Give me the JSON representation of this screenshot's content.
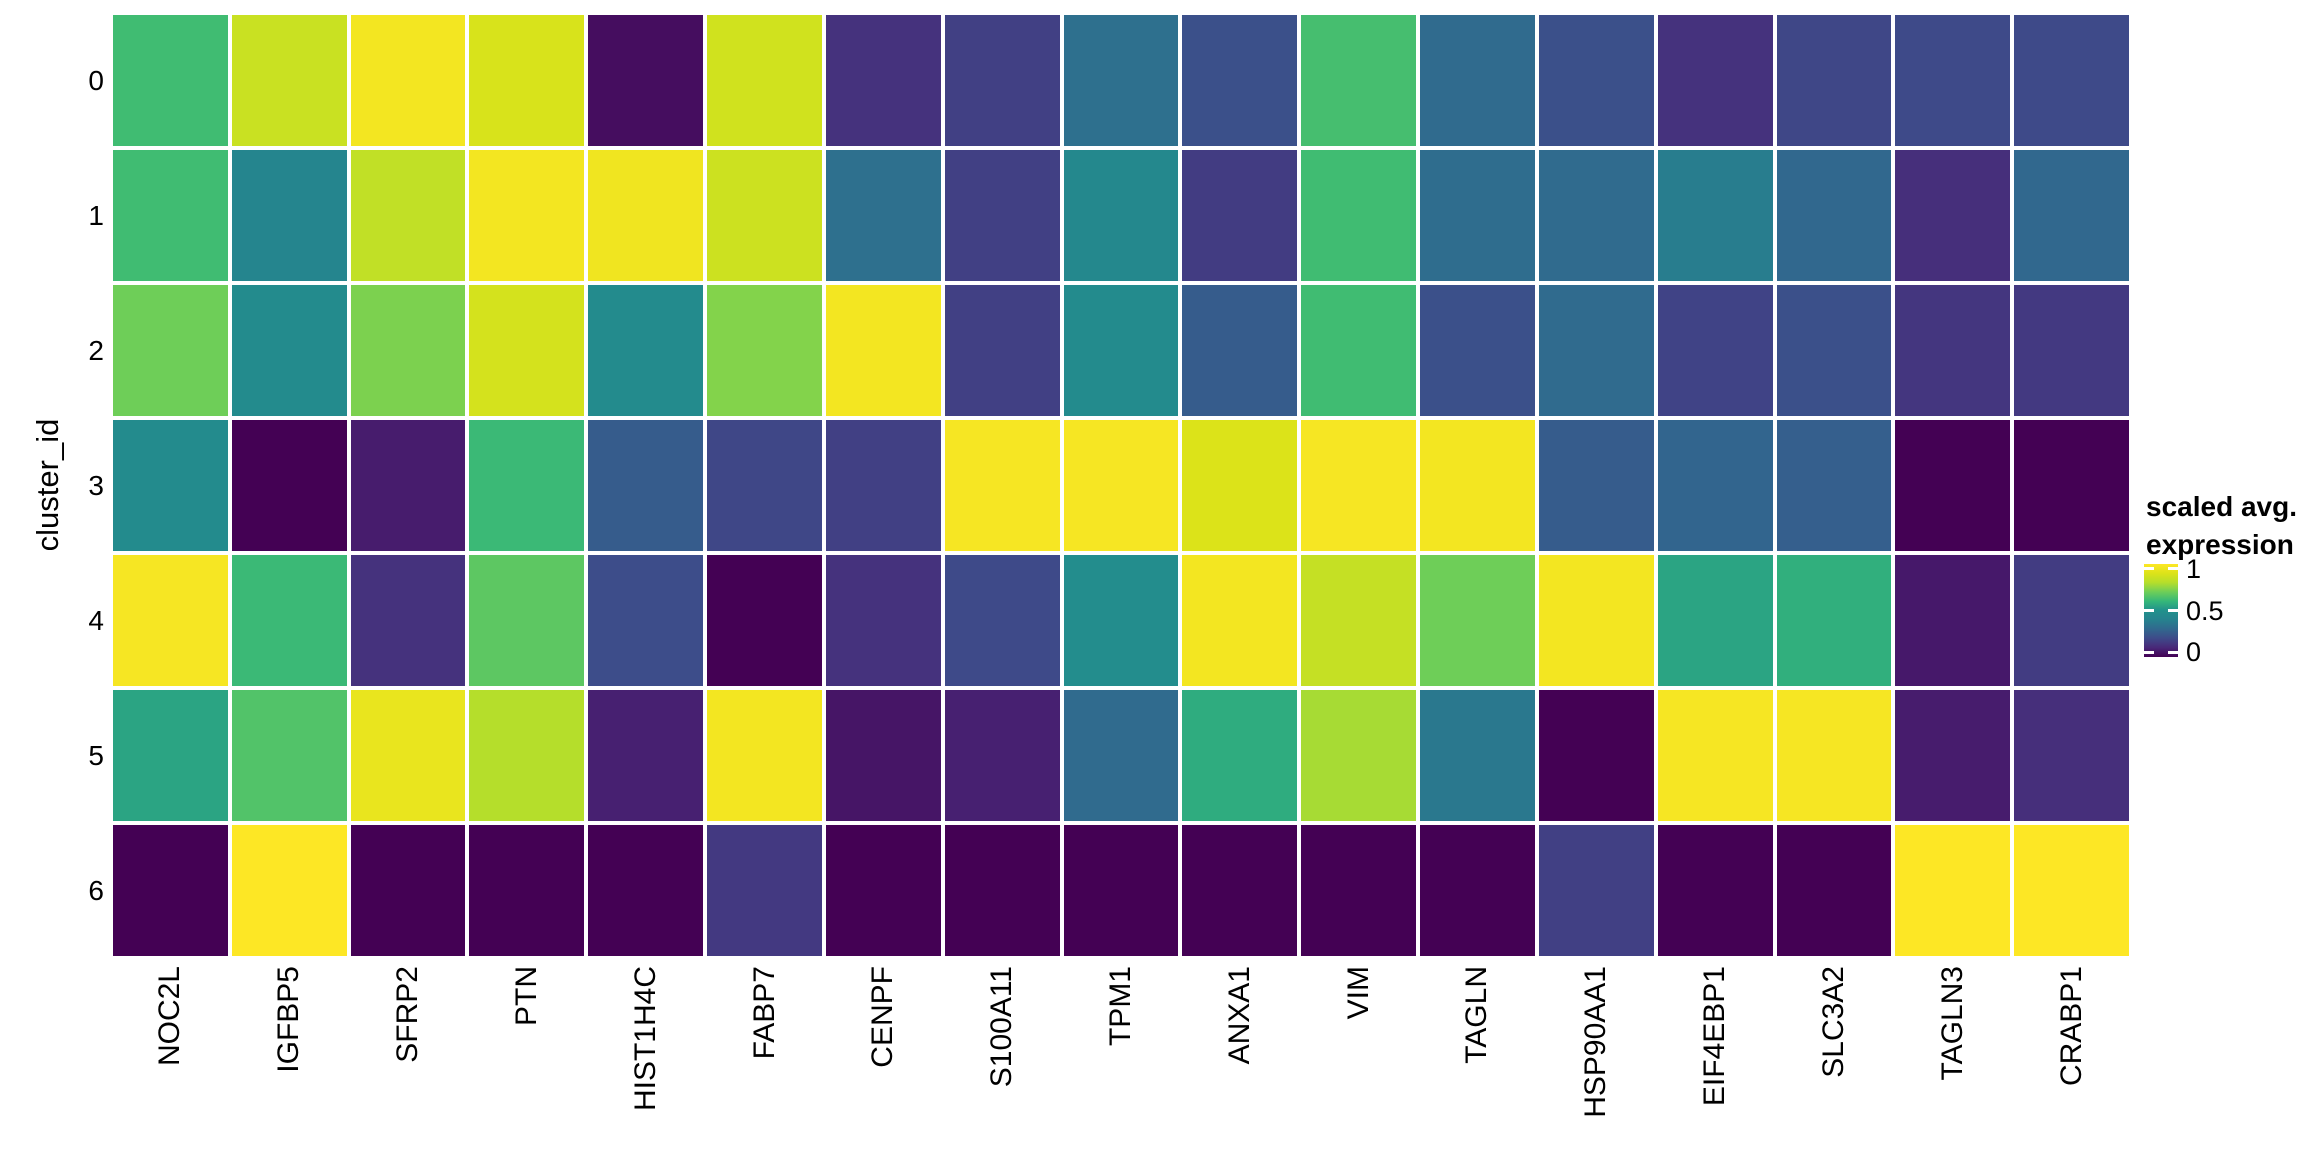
{
  "chart_data": {
    "type": "heatmap",
    "colormap": "viridis",
    "x_axis": {
      "label": "",
      "categories": [
        "NOC2L",
        "IGFBP5",
        "SFRP2",
        "PTN",
        "HIST1H4C",
        "FABP7",
        "CENPF",
        "S100A11",
        "TPM1",
        "ANXA1",
        "VIM",
        "TAGLN",
        "HSP90AA1",
        "EIF4EBP1",
        "SLC3A2",
        "TAGLN3",
        "CRABP1"
      ]
    },
    "y_axis": {
      "label": "cluster_id",
      "categories": [
        "0",
        "1",
        "2",
        "3",
        "4",
        "5",
        "6"
      ]
    },
    "values": [
      [
        0.62,
        0.85,
        0.97,
        0.89,
        0.03,
        0.87,
        0.13,
        0.17,
        0.33,
        0.22,
        0.63,
        0.31,
        0.22,
        0.13,
        0.19,
        0.2,
        0.2
      ],
      [
        0.62,
        0.42,
        0.83,
        0.97,
        0.96,
        0.86,
        0.33,
        0.17,
        0.44,
        0.16,
        0.62,
        0.32,
        0.31,
        0.38,
        0.3,
        0.12,
        0.3
      ],
      [
        0.7,
        0.46,
        0.72,
        0.88,
        0.46,
        0.73,
        0.97,
        0.17,
        0.46,
        0.26,
        0.62,
        0.22,
        0.31,
        0.18,
        0.22,
        0.14,
        0.15
      ],
      [
        0.46,
        0.0,
        0.07,
        0.61,
        0.26,
        0.19,
        0.17,
        0.98,
        0.98,
        0.9,
        0.98,
        0.97,
        0.26,
        0.29,
        0.27,
        0.0,
        0.0
      ],
      [
        0.98,
        0.61,
        0.13,
        0.67,
        0.21,
        0.0,
        0.13,
        0.2,
        0.47,
        0.97,
        0.84,
        0.7,
        0.97,
        0.55,
        0.58,
        0.06,
        0.16
      ],
      [
        0.55,
        0.65,
        0.94,
        0.8,
        0.08,
        0.97,
        0.05,
        0.08,
        0.31,
        0.57,
        0.78,
        0.36,
        0.0,
        0.98,
        0.98,
        0.07,
        0.12
      ],
      [
        0.0,
        1.0,
        0.0,
        0.0,
        0.0,
        0.15,
        0.0,
        0.0,
        0.0,
        0.0,
        0.0,
        0.0,
        0.17,
        0.0,
        0.0,
        1.0,
        1.0
      ]
    ],
    "value_range": [
      0,
      1
    ],
    "legend": {
      "title_line1": "scaled avg.",
      "title_line2": "expression",
      "ticks": [
        {
          "label": "1",
          "value": 1
        },
        {
          "label": "0.5",
          "value": 0.5
        },
        {
          "label": "0",
          "value": 0
        }
      ]
    },
    "palette": {
      "viridis_stops": [
        "#440154",
        "#482878",
        "#3e4a89",
        "#31688e",
        "#26828e",
        "#21918c",
        "#35b779",
        "#6ece58",
        "#b5de2b",
        "#dce319",
        "#fde725"
      ]
    },
    "layout_hints": {
      "grid": "off",
      "legend_position": "right",
      "x_tick_rotation": 90
    }
  }
}
